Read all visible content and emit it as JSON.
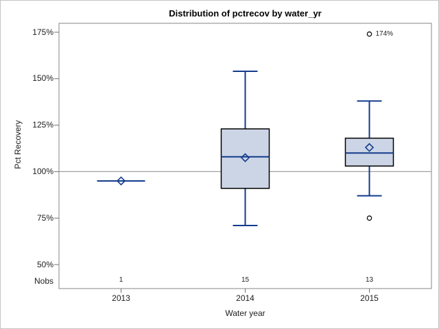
{
  "chart_data": {
    "type": "boxplot",
    "title": "Distribution of pctrecov by water_yr",
    "xlabel": "Water year",
    "ylabel": "Pct Recovery",
    "categories": [
      "2013",
      "2014",
      "2015"
    ],
    "nobs_label": "Nobs",
    "nobs": [
      1,
      15,
      13
    ],
    "nobs_display": [
      "1",
      "15",
      "13"
    ],
    "y_tick_labels": [
      "175%",
      "150%",
      "125%",
      "100%",
      "75%",
      "50%"
    ],
    "y_tick_values": [
      175,
      150,
      125,
      100,
      75,
      50
    ],
    "y_unit": "percent",
    "reference_line": 100,
    "grid": false,
    "series": [
      {
        "category": "2013",
        "n": 1,
        "min": 95,
        "q1": 95,
        "median": 95,
        "mean": 95,
        "q3": 95,
        "max": 95,
        "outliers": []
      },
      {
        "category": "2014",
        "n": 15,
        "min": 71,
        "q1": 91,
        "median": 108,
        "mean": 107.5,
        "q3": 123,
        "max": 154,
        "outliers": []
      },
      {
        "category": "2015",
        "n": 13,
        "min": 87,
        "q1": 103,
        "median": 110,
        "mean": 113,
        "q3": 118,
        "max": 138,
        "outliers": [
          {
            "value": 75,
            "label": ""
          },
          {
            "value": 174,
            "label": "174%"
          }
        ]
      }
    ],
    "colors": {
      "box_fill": "#ccd5e6",
      "box_border": "#000000",
      "whisker": "#123a8c",
      "median": "#123a8c",
      "mean_marker": "#123a8c",
      "outlier_stroke": "#000000",
      "reference_line": "#a0a0a0",
      "frame": "#848484",
      "tick": "#707070"
    }
  }
}
